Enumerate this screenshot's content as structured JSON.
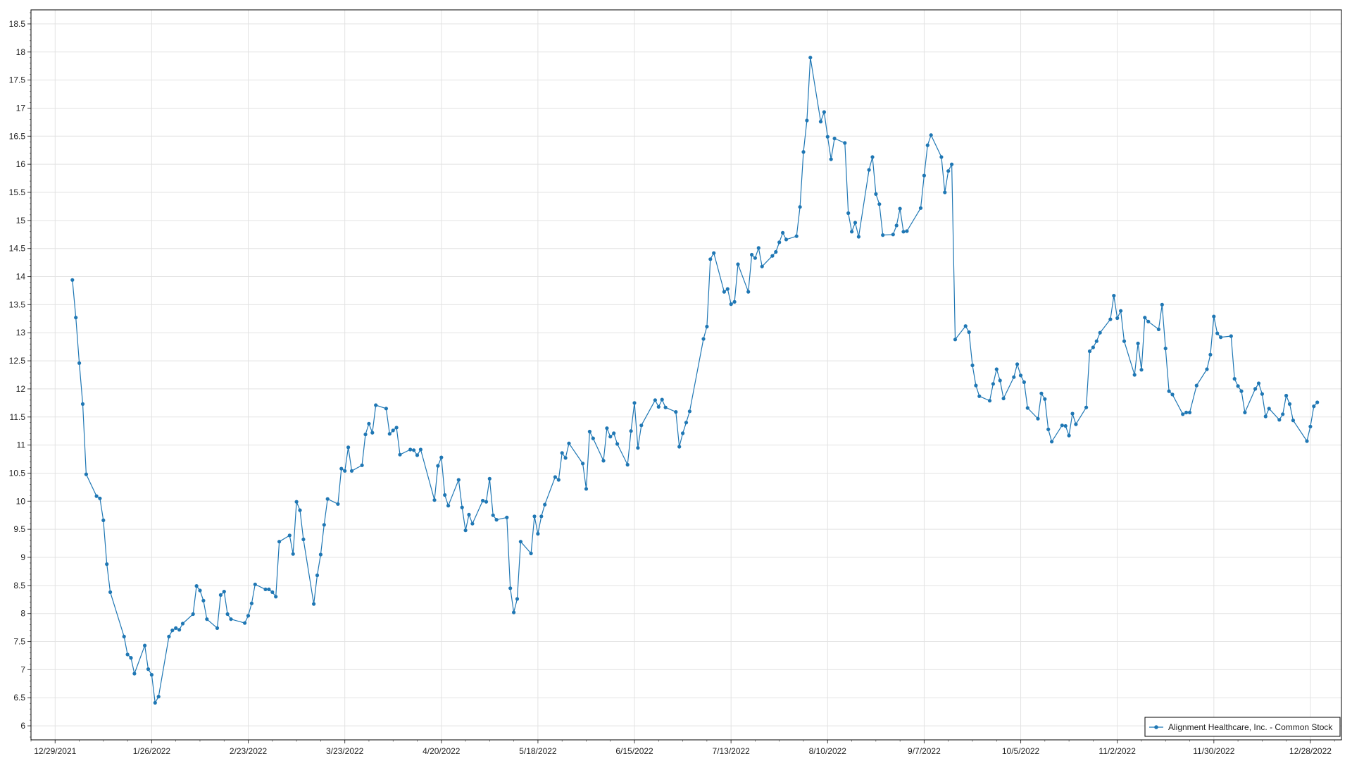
{
  "chart_data": {
    "type": "line",
    "title": "",
    "xlabel": "",
    "ylabel": "",
    "ylim": [
      5.75,
      18.75
    ],
    "xlim": [
      "2021-12-22",
      "2023-01-06"
    ],
    "grid": true,
    "legend_position": "bottom-right",
    "y_ticks": [
      "6",
      "6.5",
      "7",
      "7.5",
      "8",
      "8.5",
      "9",
      "9.5",
      "10",
      "10.5",
      "11",
      "11.5",
      "12",
      "12.5",
      "13",
      "13.5",
      "14",
      "14.5",
      "15",
      "15.5",
      "16",
      "16.5",
      "17",
      "17.5",
      "18",
      "18.5"
    ],
    "x_ticks": [
      "12/29/2021",
      "1/26/2022",
      "2/23/2022",
      "3/23/2022",
      "4/20/2022",
      "5/18/2022",
      "6/15/2022",
      "7/13/2022",
      "8/10/2022",
      "9/7/2022",
      "10/5/2022",
      "11/2/2022",
      "11/30/2022",
      "12/28/2022"
    ],
    "series": [
      {
        "name": "Alignment Healthcare, Inc. - Common Stock",
        "color": "#1f77b4",
        "x": [
          "2022-01-03",
          "2022-01-04",
          "2022-01-05",
          "2022-01-06",
          "2022-01-07",
          "2022-01-10",
          "2022-01-11",
          "2022-01-12",
          "2022-01-13",
          "2022-01-14",
          "2022-01-18",
          "2022-01-19",
          "2022-01-20",
          "2022-01-21",
          "2022-01-24",
          "2022-01-25",
          "2022-01-26",
          "2022-01-27",
          "2022-01-28",
          "2022-01-31",
          "2022-02-01",
          "2022-02-02",
          "2022-02-03",
          "2022-02-04",
          "2022-02-07",
          "2022-02-08",
          "2022-02-09",
          "2022-02-10",
          "2022-02-11",
          "2022-02-14",
          "2022-02-15",
          "2022-02-16",
          "2022-02-17",
          "2022-02-18",
          "2022-02-22",
          "2022-02-23",
          "2022-02-24",
          "2022-02-25",
          "2022-02-28",
          "2022-03-01",
          "2022-03-02",
          "2022-03-03",
          "2022-03-04",
          "2022-03-07",
          "2022-03-08",
          "2022-03-09",
          "2022-03-10",
          "2022-03-11",
          "2022-03-14",
          "2022-03-15",
          "2022-03-16",
          "2022-03-17",
          "2022-03-18",
          "2022-03-21",
          "2022-03-22",
          "2022-03-23",
          "2022-03-24",
          "2022-03-25",
          "2022-03-28",
          "2022-03-29",
          "2022-03-30",
          "2022-03-31",
          "2022-04-01",
          "2022-04-04",
          "2022-04-05",
          "2022-04-06",
          "2022-04-07",
          "2022-04-08",
          "2022-04-11",
          "2022-04-12",
          "2022-04-13",
          "2022-04-14",
          "2022-04-18",
          "2022-04-19",
          "2022-04-20",
          "2022-04-21",
          "2022-04-22",
          "2022-04-25",
          "2022-04-26",
          "2022-04-27",
          "2022-04-28",
          "2022-04-29",
          "2022-05-02",
          "2022-05-03",
          "2022-05-04",
          "2022-05-05",
          "2022-05-06",
          "2022-05-09",
          "2022-05-10",
          "2022-05-11",
          "2022-05-12",
          "2022-05-13",
          "2022-05-16",
          "2022-05-17",
          "2022-05-18",
          "2022-05-19",
          "2022-05-20",
          "2022-05-23",
          "2022-05-24",
          "2022-05-25",
          "2022-05-26",
          "2022-05-27",
          "2022-05-31",
          "2022-06-01",
          "2022-06-02",
          "2022-06-03",
          "2022-06-06",
          "2022-06-07",
          "2022-06-08",
          "2022-06-09",
          "2022-06-10",
          "2022-06-13",
          "2022-06-14",
          "2022-06-15",
          "2022-06-16",
          "2022-06-17",
          "2022-06-21",
          "2022-06-22",
          "2022-06-23",
          "2022-06-24",
          "2022-06-27",
          "2022-06-28",
          "2022-06-29",
          "2022-06-30",
          "2022-07-01",
          "2022-07-05",
          "2022-07-06",
          "2022-07-07",
          "2022-07-08",
          "2022-07-11",
          "2022-07-12",
          "2022-07-13",
          "2022-07-14",
          "2022-07-15",
          "2022-07-18",
          "2022-07-19",
          "2022-07-20",
          "2022-07-21",
          "2022-07-22",
          "2022-07-25",
          "2022-07-26",
          "2022-07-27",
          "2022-07-28",
          "2022-07-29",
          "2022-08-01",
          "2022-08-02",
          "2022-08-03",
          "2022-08-04",
          "2022-08-05",
          "2022-08-08",
          "2022-08-09",
          "2022-08-10",
          "2022-08-11",
          "2022-08-12",
          "2022-08-15",
          "2022-08-16",
          "2022-08-17",
          "2022-08-18",
          "2022-08-19",
          "2022-08-22",
          "2022-08-23",
          "2022-08-24",
          "2022-08-25",
          "2022-08-26",
          "2022-08-29",
          "2022-08-30",
          "2022-08-31",
          "2022-09-01",
          "2022-09-02",
          "2022-09-06",
          "2022-09-07",
          "2022-09-08",
          "2022-09-09",
          "2022-09-12",
          "2022-09-13",
          "2022-09-14",
          "2022-09-15",
          "2022-09-16",
          "2022-09-19",
          "2022-09-20",
          "2022-09-21",
          "2022-09-22",
          "2022-09-23",
          "2022-09-26",
          "2022-09-27",
          "2022-09-28",
          "2022-09-29",
          "2022-09-30",
          "2022-10-03",
          "2022-10-04",
          "2022-10-05",
          "2022-10-06",
          "2022-10-07",
          "2022-10-10",
          "2022-10-11",
          "2022-10-12",
          "2022-10-13",
          "2022-10-14",
          "2022-10-17",
          "2022-10-18",
          "2022-10-19",
          "2022-10-20",
          "2022-10-21",
          "2022-10-24",
          "2022-10-25",
          "2022-10-26",
          "2022-10-27",
          "2022-10-28",
          "2022-10-31",
          "2022-11-01",
          "2022-11-02",
          "2022-11-03",
          "2022-11-04",
          "2022-11-07",
          "2022-11-08",
          "2022-11-09",
          "2022-11-10",
          "2022-11-11",
          "2022-11-14",
          "2022-11-15",
          "2022-11-16",
          "2022-11-17",
          "2022-11-18",
          "2022-11-21",
          "2022-11-22",
          "2022-11-23",
          "2022-11-25",
          "2022-11-28",
          "2022-11-29",
          "2022-11-30",
          "2022-12-01",
          "2022-12-02",
          "2022-12-05",
          "2022-12-06",
          "2022-12-07",
          "2022-12-08",
          "2022-12-09",
          "2022-12-12",
          "2022-12-13",
          "2022-12-14",
          "2022-12-15",
          "2022-12-16",
          "2022-12-19",
          "2022-12-20",
          "2022-12-21",
          "2022-12-22",
          "2022-12-23",
          "2022-12-27",
          "2022-12-28",
          "2022-12-29",
          "2022-12-30"
        ],
        "y": [
          13.94,
          13.27,
          12.46,
          11.73,
          10.48,
          10.09,
          10.05,
          9.66,
          8.88,
          8.38,
          7.59,
          7.27,
          7.21,
          6.93,
          7.43,
          7.01,
          6.91,
          6.41,
          6.52,
          7.59,
          7.7,
          7.74,
          7.71,
          7.82,
          7.99,
          8.49,
          8.41,
          8.23,
          7.9,
          7.74,
          8.33,
          8.39,
          7.99,
          7.9,
          7.83,
          7.96,
          8.18,
          8.52,
          8.43,
          8.43,
          8.38,
          8.3,
          9.28,
          9.39,
          9.06,
          9.99,
          9.84,
          9.32,
          8.17,
          8.68,
          9.05,
          9.58,
          10.04,
          9.95,
          10.58,
          10.54,
          10.96,
          10.54,
          10.64,
          11.19,
          11.38,
          11.22,
          11.71,
          11.65,
          11.2,
          11.26,
          11.31,
          10.83,
          10.92,
          10.91,
          10.82,
          10.92,
          10.02,
          10.63,
          10.78,
          10.11,
          9.92,
          10.38,
          9.89,
          9.48,
          9.76,
          9.6,
          10.01,
          9.99,
          10.4,
          9.75,
          9.67,
          9.71,
          8.45,
          8.02,
          8.26,
          9.28,
          9.07,
          9.73,
          9.42,
          9.73,
          9.94,
          10.43,
          10.38,
          10.86,
          10.77,
          11.03,
          10.67,
          10.22,
          11.24,
          11.12,
          10.72,
          11.3,
          11.15,
          11.21,
          11.02,
          10.65,
          11.25,
          11.75,
          10.95,
          11.35,
          11.8,
          11.68,
          11.81,
          11.67,
          11.59,
          10.97,
          11.21,
          11.4,
          11.6,
          12.89,
          13.11,
          14.31,
          14.42,
          13.73,
          13.78,
          13.51,
          13.55,
          14.22,
          13.73,
          14.39,
          14.33,
          14.51,
          14.18,
          14.37,
          14.44,
          14.61,
          14.78,
          14.66,
          14.72,
          15.24,
          16.22,
          16.78,
          17.9,
          16.76,
          16.93,
          16.49,
          16.09,
          16.46,
          16.38,
          15.13,
          14.8,
          14.96,
          14.71,
          15.9,
          16.13,
          15.47,
          15.29,
          14.74,
          14.75,
          14.91,
          15.21,
          14.8,
          14.81,
          15.22,
          15.8,
          16.34,
          16.52,
          16.13,
          15.5,
          15.88,
          16.0,
          12.88,
          13.12,
          13.01,
          12.42,
          12.06,
          11.87,
          11.79,
          12.09,
          12.35,
          12.15,
          11.83,
          12.21,
          12.44,
          12.24,
          12.12,
          11.66,
          11.47,
          11.92,
          11.82,
          11.28,
          11.06,
          11.35,
          11.34,
          11.17,
          11.56,
          11.37,
          11.67,
          12.67,
          12.74,
          12.85,
          13.0,
          13.24,
          13.66,
          13.26,
          13.39,
          12.85,
          12.25,
          12.81,
          12.34,
          13.27,
          13.2,
          13.06,
          13.5,
          12.72,
          11.96,
          11.9,
          11.55,
          11.58,
          11.58,
          12.06,
          12.35,
          12.61,
          13.29,
          12.99,
          12.92,
          12.94,
          12.18,
          12.05,
          11.96,
          11.58,
          12.0,
          12.1,
          11.91,
          11.51,
          11.65,
          11.45,
          11.55,
          11.88,
          11.73,
          11.44,
          11.07,
          11.33,
          11.69,
          11.76
        ]
      }
    ]
  }
}
